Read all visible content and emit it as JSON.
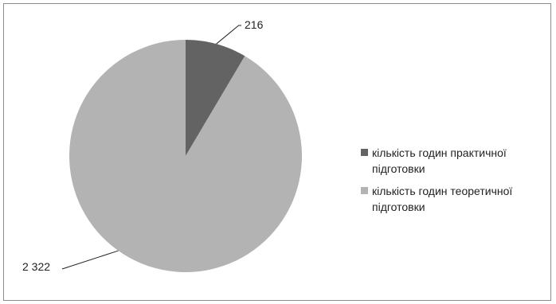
{
  "chart_data": {
    "type": "pie",
    "categories": [
      "кількість годин практичної підготовки",
      "кількість годин теоретичної підготовки"
    ],
    "values": [
      216,
      2322
    ],
    "data_labels": [
      "216",
      "2 322"
    ],
    "colors": [
      "#636363",
      "#b3b3b3"
    ],
    "legend_position": "right"
  },
  "legend": {
    "items": [
      {
        "label": "кількість годин практичної підготовки",
        "color": "#636363"
      },
      {
        "label": "кількість годин теоретичної підготовки",
        "color": "#b3b3b3"
      }
    ]
  }
}
